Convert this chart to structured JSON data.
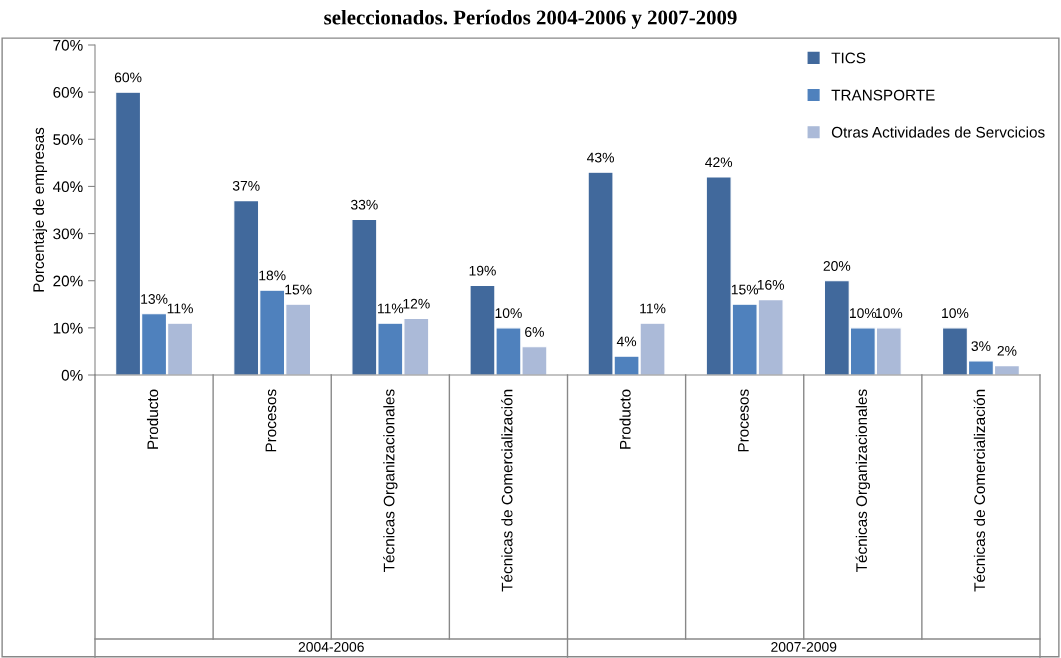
{
  "chart_data": {
    "type": "bar",
    "title": "seleccionados. Períodos 2004-2006 y 2007-2009",
    "ylabel": "Porcentaje de empresas",
    "categories": [
      "Producto",
      "Procesos",
      "Técnicas Organizacionales",
      "Técnicas de Comercialización",
      "Producto",
      "Procesos",
      "Técnicas Organizacionales",
      "Técnicas de Comercialización"
    ],
    "series": [
      {
        "name": "TICS",
        "color": "#41699c",
        "values": [
          60,
          37,
          33,
          19,
          43,
          42,
          20,
          10
        ],
        "value_labels": [
          "60%",
          "37%",
          "33%",
          "19%",
          "43%",
          "42%",
          "20%",
          "10%"
        ]
      },
      {
        "name": "TRANSPORTE",
        "color": "#4f81bd",
        "values": [
          13,
          18,
          11,
          10,
          4,
          15,
          10,
          3
        ],
        "value_labels": [
          "13%",
          "18%",
          "11%",
          "10%",
          "4%",
          "15%",
          "10%",
          "3%"
        ]
      },
      {
        "name": "Otras Actividades de Servcicios",
        "color": "#abbad8",
        "values": [
          11,
          15,
          12,
          6,
          11,
          16,
          10,
          2
        ],
        "value_labels": [
          "11%",
          "15%",
          "12%",
          "6%",
          "11%",
          "16%",
          "10%",
          "2%"
        ]
      }
    ],
    "ylim": [
      0,
      70
    ],
    "yticks": [
      {
        "value": 0,
        "label": "0%"
      },
      {
        "value": 10,
        "label": "10%"
      },
      {
        "value": 20,
        "label": "20%"
      },
      {
        "value": 30,
        "label": "30%"
      },
      {
        "value": 40,
        "label": "40%"
      },
      {
        "value": 50,
        "label": "50%"
      },
      {
        "value": 60,
        "label": "60%"
      },
      {
        "value": 70,
        "label": "70%"
      }
    ],
    "annotations": [
      "2004-2006",
      "2007-2009"
    ],
    "grid": false,
    "legend": "top right"
  }
}
